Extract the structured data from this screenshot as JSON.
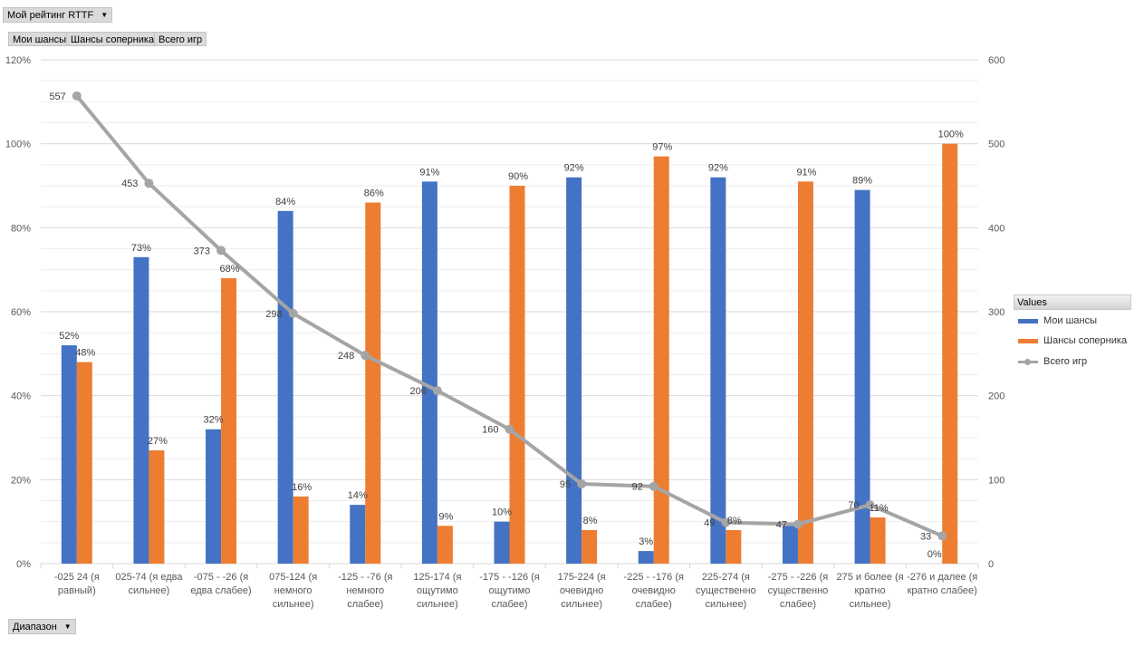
{
  "pivot": {
    "filter_label": "Мой рейтинг RTTF",
    "value_buttons": [
      "Мои шансы",
      "Шансы соперника",
      "Всего игр"
    ],
    "axis_field_label": "Диапазон"
  },
  "colors": {
    "series1": "#4472C4",
    "series2": "#ED7D31",
    "line": "#A5A5A5"
  },
  "chart_data": {
    "type": "bar",
    "combo": "clustered column + line on secondary axis",
    "categories": [
      [
        "-025  24 (я",
        "равный)"
      ],
      [
        "025-74 (я едва",
        "сильнее)"
      ],
      [
        "-075 - -26 (я",
        "едва слабее)"
      ],
      [
        "075-124 (я",
        "немного",
        "сильнее)"
      ],
      [
        "-125 - -76 (я",
        "немного",
        "слабее)"
      ],
      [
        "125-174 (я",
        "ощутимо",
        "сильнее)"
      ],
      [
        "-175 - -126 (я",
        "ощутимо",
        "слабее)"
      ],
      [
        "175-224 (я",
        "очевидно",
        "сильнее)"
      ],
      [
        "-225 - -176 (я",
        "очевидно",
        "слабее)"
      ],
      [
        "225-274 (я",
        "существенно",
        "сильнее)"
      ],
      [
        "-275 - -226 (я",
        "существенно",
        "слабее)"
      ],
      [
        "275 и более (я",
        "кратно",
        "сильнее)"
      ],
      [
        "-276 и далее (я",
        "кратно слабее)"
      ]
    ],
    "series": [
      {
        "name": "Мои шансы",
        "axis": "primary",
        "values": [
          52,
          73,
          32,
          84,
          14,
          91,
          10,
          92,
          3,
          92,
          9,
          89,
          0
        ]
      },
      {
        "name": "Шансы соперника",
        "axis": "primary",
        "values": [
          48,
          27,
          68,
          16,
          86,
          9,
          90,
          8,
          97,
          8,
          91,
          11,
          100
        ]
      },
      {
        "name": "Всего игр",
        "axis": "secondary",
        "type": "line",
        "values": [
          557,
          453,
          373,
          298,
          248,
          206,
          160,
          95,
          92,
          49,
          47,
          70,
          33
        ]
      }
    ],
    "bar_labels": [
      [
        "52%",
        "48%"
      ],
      [
        "73%",
        "27%"
      ],
      [
        "32%",
        "68%"
      ],
      [
        "84%",
        "16%"
      ],
      [
        "14%",
        "86%"
      ],
      [
        "91%",
        "9%"
      ],
      [
        "10%",
        "90%"
      ],
      [
        "92%",
        "8%"
      ],
      [
        "3%",
        "97%"
      ],
      [
        "92%",
        "8%"
      ],
      [
        "",
        "91%"
      ],
      [
        "89%",
        "11%"
      ],
      [
        "0%",
        "100%"
      ]
    ],
    "line_labels": [
      "557",
      "453",
      "373",
      "298",
      "248",
      "206",
      "160",
      "95",
      "92",
      "49",
      "47",
      "70",
      "33"
    ],
    "y_ticks": [
      "0%",
      "20%",
      "40%",
      "60%",
      "80%",
      "100%",
      "120%"
    ],
    "y2_ticks": [
      "0",
      "100",
      "200",
      "300",
      "400",
      "500",
      "600"
    ],
    "ylim": [
      0,
      120
    ],
    "y2lim": [
      0,
      600
    ],
    "legend_title": "Values",
    "legend_position": "right",
    "grid": true
  }
}
